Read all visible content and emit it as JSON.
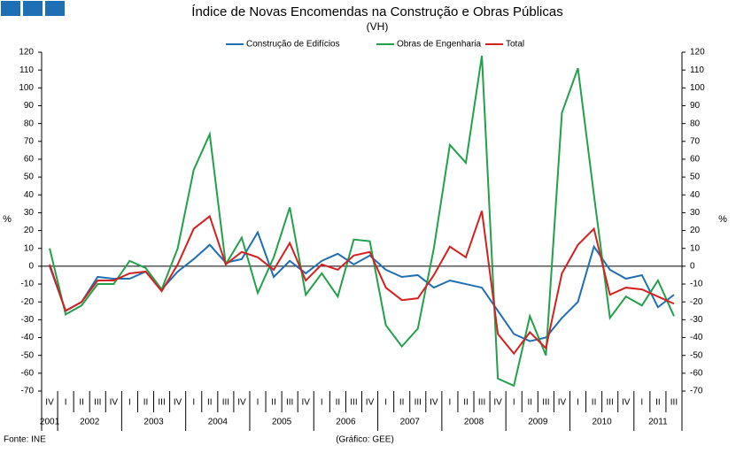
{
  "header_icon_count": 3,
  "chart_data": {
    "type": "line",
    "title": "Índice de Novas Encomendas na Construção e Obras Públicas",
    "subtitle": "(VH)",
    "ylabel": "%",
    "y2label": "%",
    "source": "Fonte: INE",
    "credit": "(Gráfico: GEE)",
    "categories": [
      "IV",
      "I",
      "II",
      "III",
      "IV",
      "I",
      "II",
      "III",
      "IV",
      "I",
      "II",
      "III",
      "IV",
      "I",
      "II",
      "III",
      "IV",
      "I",
      "II",
      "III",
      "IV",
      "I",
      "II",
      "III",
      "IV",
      "I",
      "II",
      "III",
      "IV",
      "I",
      "II",
      "III",
      "IV",
      "I",
      "II",
      "III",
      "IV",
      "I",
      "II",
      "III"
    ],
    "years": [
      "2001",
      "2002",
      "2003",
      "2004",
      "2005",
      "2006",
      "2007",
      "2008",
      "2009",
      "2010",
      "2011"
    ],
    "ylim": [
      -70,
      120
    ],
    "yticks": [
      -70,
      -60,
      -50,
      -40,
      -30,
      -20,
      -10,
      0,
      10,
      20,
      30,
      40,
      50,
      60,
      70,
      80,
      90,
      100,
      110,
      120
    ],
    "y2lim": [
      -70,
      120
    ],
    "y2ticks": [
      -70,
      -60,
      -50,
      -40,
      -30,
      -20,
      -10,
      0,
      10,
      20,
      30,
      40,
      50,
      60,
      70,
      80,
      90,
      100,
      110,
      120
    ],
    "series": [
      {
        "name": "Construção de Edifícios",
        "color": "#1f6fb4",
        "values": [
          0,
          -25,
          -20,
          -6,
          -7,
          -7,
          -3,
          -13,
          -3,
          4,
          12,
          2,
          4,
          19,
          -6,
          3,
          -4,
          3,
          7,
          1,
          6,
          -2,
          -6,
          -5,
          -12,
          -8,
          -10,
          -12,
          -25,
          -38,
          -42,
          -40,
          -29,
          -20,
          11,
          -2,
          -7,
          -5,
          -23,
          -16
        ]
      },
      {
        "name": "Obras de Engenharia",
        "color": "#22a04a",
        "values": [
          10,
          -27,
          -22,
          -10,
          -10,
          3,
          -1,
          -13,
          10,
          54,
          74,
          1,
          16,
          -15,
          5,
          33,
          -16,
          -4,
          -17,
          15,
          14,
          -33,
          -45,
          -35,
          10,
          68,
          58,
          118,
          -63,
          -67,
          -28,
          -50,
          86,
          111,
          40,
          -29,
          -17,
          -22,
          -8,
          -28
        ]
      },
      {
        "name": "Total",
        "color": "#d42020",
        "values": [
          1,
          -25,
          -20,
          -8,
          -8,
          -4,
          -3,
          -14,
          1,
          21,
          28,
          1,
          8,
          5,
          -2,
          13,
          -8,
          1,
          -2,
          6,
          8,
          -12,
          -19,
          -18,
          -5,
          11,
          5,
          31,
          -38,
          -49,
          -37,
          -46,
          -4,
          12,
          21,
          -16,
          -12,
          -13,
          -17,
          -21
        ]
      }
    ]
  }
}
